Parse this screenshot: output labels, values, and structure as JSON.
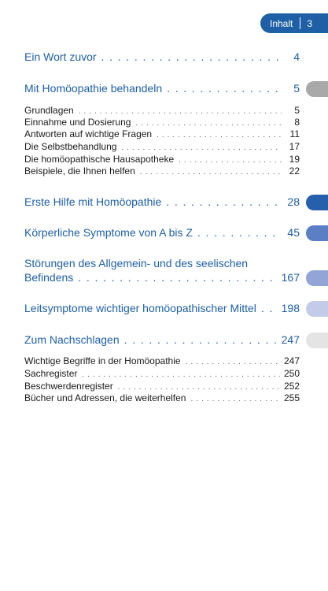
{
  "header": {
    "section": "Inhalt",
    "page": "3"
  },
  "colors": {
    "accent": "#1e5fa6",
    "tabs": [
      "#a9a9a9",
      "#2660ad",
      "#5b7ec4",
      "#93a4d6",
      "#c3cbe9",
      "#e4e4e4"
    ]
  },
  "toc": {
    "wort": {
      "title": "Ein Wort zuvor",
      "page": "4"
    },
    "behandeln": {
      "title": "Mit Homöopathie behandeln",
      "page": "5",
      "items": [
        {
          "title": "Grundlagen",
          "page": "5"
        },
        {
          "title": "Einnahme und Dosierung",
          "page": "8"
        },
        {
          "title": "Antworten auf wichtige Fragen",
          "page": "11"
        },
        {
          "title": "Die Selbstbehandlung",
          "page": "17"
        },
        {
          "title": "Die homöopathische Hausapotheke",
          "page": "19"
        },
        {
          "title": "Beispiele, die Ihnen helfen",
          "page": "22"
        }
      ]
    },
    "erste_hilfe": {
      "title": "Erste Hilfe mit Homöopathie",
      "page": "28"
    },
    "symptome": {
      "title": "Körperliche Symptome von A bis Z",
      "page": "45"
    },
    "stoerungen": {
      "title_line1": "Störungen des Allgemein- und des seelischen",
      "title_line2": "Befindens",
      "page": "167"
    },
    "leitsymptome": {
      "title": "Leitsymptome wichtiger homöopathischer Mittel",
      "page": "198"
    },
    "nachschlagen": {
      "title": "Zum Nachschlagen",
      "page": "247",
      "items": [
        {
          "title": "Wichtige Begriffe in der Homöopathie",
          "page": "247"
        },
        {
          "title": "Sachregister",
          "page": "250"
        },
        {
          "title": "Beschwerdenregister",
          "page": "252"
        },
        {
          "title": "Bücher und Adressen, die weiterhelfen",
          "page": "255"
        }
      ]
    }
  }
}
